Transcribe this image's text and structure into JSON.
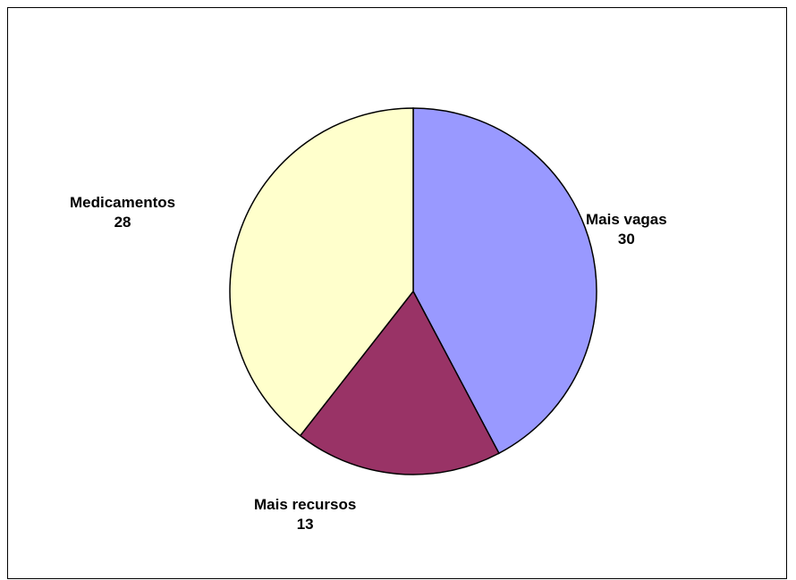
{
  "chart_data": {
    "type": "pie",
    "title": "",
    "categories": [
      "Mais vagas",
      "Mais recursos",
      "Medicamentos"
    ],
    "values": [
      30,
      13,
      28
    ],
    "colors": [
      "#9999FF",
      "#993366",
      "#FFFFCC"
    ],
    "start_angle_deg": 0,
    "direction": "clockwise",
    "legend": "none",
    "data_labels": "category name and value, outside slices",
    "border_color": "#000000"
  }
}
